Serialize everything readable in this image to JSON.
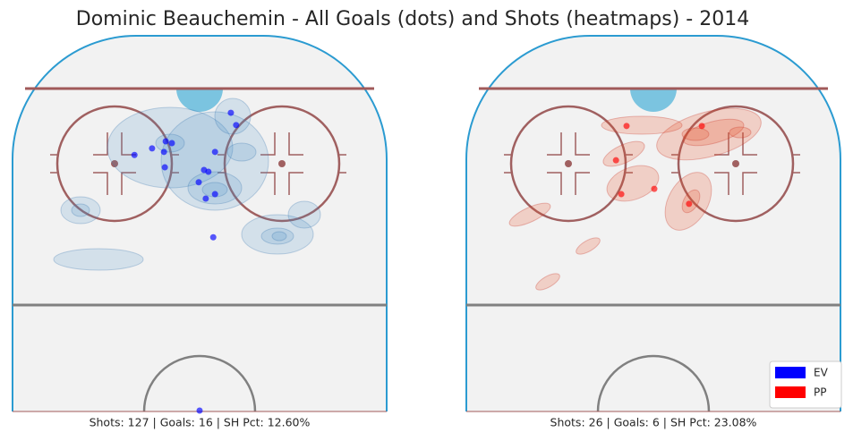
{
  "chart_data": {
    "type": "scatter",
    "title": "Dominic Beauchemin - All Goals (dots) and Shots (heatmaps) - 2014",
    "xlim": [
      -42.5,
      42.5
    ],
    "ylim": [
      0,
      85.4
    ],
    "panels": [
      {
        "caption": "Shots: 127 | Goals: 16 | SH Pct: 12.60%",
        "series": [
          {
            "name": "EV",
            "color": "#0000ff",
            "x": [
              7.1,
              8.3,
              -6.3,
              -10.8,
              -8.1,
              -14.8,
              3.5,
              -7.9,
              1.0,
              2.0,
              -0.2,
              3.5,
              1.4,
              3.1,
              -7.7,
              0.0
            ],
            "y": [
              17.5,
              20.3,
              24.4,
              25.6,
              26.4,
              27.1,
              26.4,
              29.9,
              30.5,
              30.9,
              33.3,
              36.0,
              37.0,
              45.8,
              24.0,
              85.2
            ]
          }
        ]
      },
      {
        "caption": "Shots: 26 | Goals: 6 | SH Pct: 23.08%",
        "series": [
          {
            "name": "PP",
            "color": "#ff0000",
            "x": [
              11.0,
              -6.1,
              -8.5,
              -7.3,
              0.2,
              8.1
            ],
            "y": [
              20.5,
              20.5,
              28.3,
              36.0,
              34.8,
              38.2
            ]
          }
        ]
      }
    ]
  }
}
